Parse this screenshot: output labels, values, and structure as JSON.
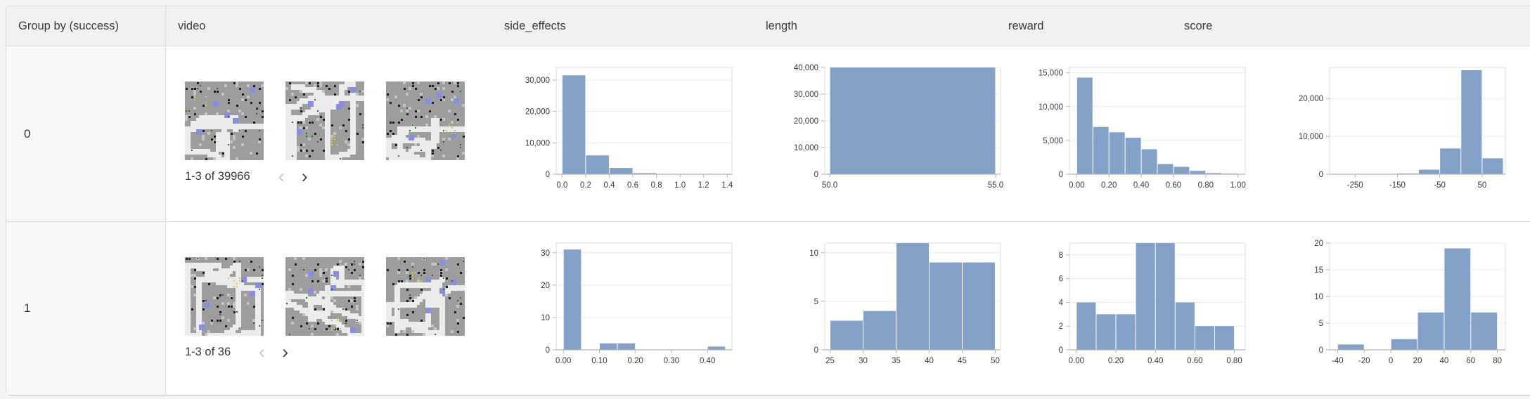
{
  "table": {
    "columns": [
      "Group by (success)",
      "video",
      "side_effects",
      "length",
      "reward",
      "score"
    ]
  },
  "rows": [
    {
      "group_label": "0",
      "video": {
        "pagination": "1-3 of 39966",
        "thumbnail_count": 3
      }
    },
    {
      "group_label": "1",
      "video": {
        "pagination": "1-3 of 36",
        "thumbnail_count": 3
      }
    }
  ],
  "icons": {
    "prev": "‹",
    "next": "›"
  },
  "colors": {
    "bar": "#84a1c7",
    "grid": "#ebebeb",
    "axis": "#b5b5b5",
    "plot_border": "#dcdcdc",
    "header_bg": "#f1f1f1",
    "group_col_bg": "#f8f8f8"
  },
  "chart_data": [
    {
      "group": "0",
      "column": "side_effects",
      "type": "bar",
      "bins": [
        [
          0.0,
          0.2,
          31500
        ],
        [
          0.2,
          0.4,
          6000
        ],
        [
          0.4,
          0.6,
          2000
        ],
        [
          0.6,
          0.8,
          350
        ],
        [
          0.8,
          1.0,
          80
        ],
        [
          1.0,
          1.2,
          30
        ],
        [
          1.2,
          1.4,
          6
        ]
      ],
      "xlim": [
        -0.05,
        1.44
      ],
      "ylim": [
        0,
        34000
      ],
      "xticks": [
        [
          0.0,
          "0.0"
        ],
        [
          0.2,
          "0.2"
        ],
        [
          0.4,
          "0.4"
        ],
        [
          0.6,
          "0.6"
        ],
        [
          0.8,
          "0.8"
        ],
        [
          1.0,
          "1.0"
        ],
        [
          1.2,
          "1.2"
        ],
        [
          1.4,
          "1.4"
        ]
      ],
      "yticks": [
        [
          0,
          "0"
        ],
        [
          10000,
          "10,000"
        ],
        [
          20000,
          "20,000"
        ],
        [
          30000,
          "30,000"
        ]
      ]
    },
    {
      "group": "0",
      "column": "length",
      "type": "bar",
      "bins": [
        [
          50.0,
          55.0,
          39966
        ]
      ],
      "xlim": [
        49.85,
        55.15
      ],
      "ylim": [
        0,
        40000
      ],
      "xticks": [
        [
          50.0,
          "50.0"
        ],
        [
          55.0,
          "55.0"
        ]
      ],
      "yticks": [
        [
          0,
          "0"
        ],
        [
          10000,
          "10,000"
        ],
        [
          20000,
          "20,000"
        ],
        [
          30000,
          "30,000"
        ],
        [
          40000,
          "40,000"
        ]
      ]
    },
    {
      "group": "0",
      "column": "reward",
      "type": "bar",
      "bins": [
        [
          0.0,
          0.1,
          14300
        ],
        [
          0.1,
          0.2,
          7000
        ],
        [
          0.2,
          0.3,
          6200
        ],
        [
          0.3,
          0.4,
          5400
        ],
        [
          0.4,
          0.5,
          3700
        ],
        [
          0.5,
          0.6,
          1500
        ],
        [
          0.6,
          0.7,
          1100
        ],
        [
          0.7,
          0.8,
          500
        ],
        [
          0.8,
          0.9,
          170
        ],
        [
          0.9,
          1.0,
          96
        ]
      ],
      "xlim": [
        -0.045,
        1.045
      ],
      "ylim": [
        0,
        15800
      ],
      "xticks": [
        [
          0.0,
          "0.00"
        ],
        [
          0.2,
          "0.20"
        ],
        [
          0.4,
          "0.40"
        ],
        [
          0.6,
          "0.60"
        ],
        [
          0.8,
          "0.80"
        ],
        [
          1.0,
          "1.00"
        ]
      ],
      "yticks": [
        [
          0,
          "0"
        ],
        [
          5000,
          "5,000"
        ],
        [
          10000,
          "10,000"
        ],
        [
          15000,
          "15,000"
        ]
      ]
    },
    {
      "group": "0",
      "column": "score",
      "type": "bar",
      "bins": [
        [
          -200,
          -150,
          80
        ],
        [
          -150,
          -100,
          200
        ],
        [
          -100,
          -50,
          1200
        ],
        [
          -50,
          0,
          6800
        ],
        [
          0,
          50,
          27486
        ],
        [
          50,
          100,
          4200
        ]
      ],
      "xlim": [
        -310,
        105
      ],
      "ylim": [
        0,
        28200
      ],
      "xticks": [
        [
          -250,
          "-250"
        ],
        [
          -150,
          "-150"
        ],
        [
          -50,
          "-50"
        ],
        [
          50,
          "50"
        ]
      ],
      "yticks": [
        [
          0,
          "0"
        ],
        [
          10000,
          "10,000"
        ],
        [
          20000,
          "20,000"
        ]
      ]
    },
    {
      "group": "1",
      "column": "side_effects",
      "type": "bar",
      "bins": [
        [
          0.0,
          0.05,
          31
        ],
        [
          0.1,
          0.15,
          2
        ],
        [
          0.15,
          0.2,
          2
        ],
        [
          0.4,
          0.45,
          1
        ]
      ],
      "xlim": [
        -0.02,
        0.468
      ],
      "ylim": [
        0,
        33
      ],
      "xticks": [
        [
          0.0,
          "0.00"
        ],
        [
          0.1,
          "0.10"
        ],
        [
          0.2,
          "0.20"
        ],
        [
          0.3,
          "0.30"
        ],
        [
          0.4,
          "0.40"
        ]
      ],
      "yticks": [
        [
          0,
          "0"
        ],
        [
          10,
          "10"
        ],
        [
          20,
          "20"
        ],
        [
          30,
          "30"
        ]
      ]
    },
    {
      "group": "1",
      "column": "length",
      "type": "bar",
      "bins": [
        [
          25,
          30,
          3
        ],
        [
          30,
          35,
          4
        ],
        [
          35,
          40,
          11
        ],
        [
          40,
          45,
          9
        ],
        [
          45,
          50,
          9
        ]
      ],
      "xlim": [
        24.2,
        50.8
      ],
      "ylim": [
        0,
        11
      ],
      "xticks": [
        [
          25,
          "25"
        ],
        [
          30,
          "30"
        ],
        [
          35,
          "35"
        ],
        [
          40,
          "40"
        ],
        [
          45,
          "45"
        ],
        [
          50,
          "50"
        ]
      ],
      "yticks": [
        [
          0,
          "0"
        ],
        [
          5,
          "5"
        ],
        [
          10,
          "10"
        ]
      ]
    },
    {
      "group": "1",
      "column": "reward",
      "type": "bar",
      "bins": [
        [
          0.0,
          0.1,
          4
        ],
        [
          0.1,
          0.2,
          3
        ],
        [
          0.2,
          0.3,
          3
        ],
        [
          0.3,
          0.4,
          9
        ],
        [
          0.4,
          0.5,
          9
        ],
        [
          0.5,
          0.6,
          4
        ],
        [
          0.6,
          0.7,
          2
        ],
        [
          0.7,
          0.8,
          2
        ]
      ],
      "xlim": [
        -0.035,
        0.855
      ],
      "ylim": [
        0,
        9
      ],
      "xticks": [
        [
          0.0,
          "0.00"
        ],
        [
          0.2,
          "0.20"
        ],
        [
          0.4,
          "0.40"
        ],
        [
          0.6,
          "0.60"
        ],
        [
          0.8,
          "0.80"
        ]
      ],
      "yticks": [
        [
          0,
          "0"
        ],
        [
          2,
          "2"
        ],
        [
          4,
          "4"
        ],
        [
          6,
          "6"
        ],
        [
          8,
          "8"
        ]
      ]
    },
    {
      "group": "1",
      "column": "score",
      "type": "bar",
      "bins": [
        [
          -40,
          -20,
          1
        ],
        [
          0,
          20,
          2
        ],
        [
          20,
          40,
          7
        ],
        [
          40,
          60,
          19
        ],
        [
          60,
          80,
          7
        ]
      ],
      "xlim": [
        -46,
        86
      ],
      "ylim": [
        0,
        20
      ],
      "xticks": [
        [
          -40,
          "-40"
        ],
        [
          -20,
          "-20"
        ],
        [
          0,
          "0"
        ],
        [
          20,
          "20"
        ],
        [
          40,
          "40"
        ],
        [
          60,
          "60"
        ],
        [
          80,
          "80"
        ]
      ],
      "yticks": [
        [
          0,
          "0"
        ],
        [
          5,
          "5"
        ],
        [
          10,
          "10"
        ],
        [
          15,
          "15"
        ],
        [
          20,
          "20"
        ]
      ]
    }
  ]
}
